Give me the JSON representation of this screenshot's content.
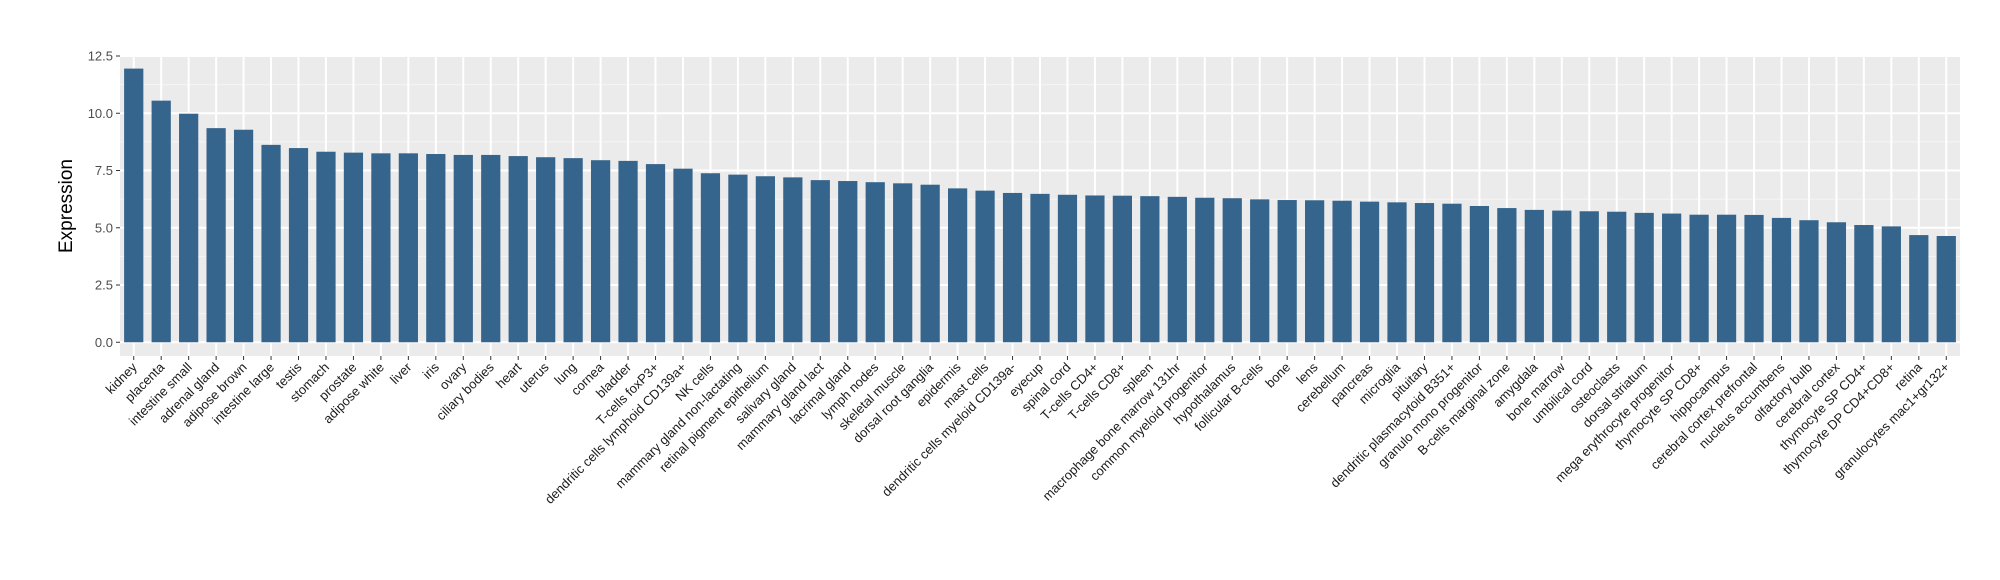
{
  "chart_data": {
    "type": "bar",
    "title": "",
    "xlabel": "",
    "ylabel": "Expression",
    "ylim": [
      -0.6,
      12.5
    ],
    "yticks": [
      "0.0",
      "2.5",
      "5.0",
      "7.5",
      "10.0",
      "12.5"
    ],
    "grid": true,
    "legend": "none",
    "colors": {
      "bar": "#35658c",
      "panel": "#ebebeb",
      "grid_major": "#ffffff",
      "grid_minor": "#f5f5f5"
    },
    "categories": [
      "kidney",
      "placenta",
      "intestine small",
      "adrenal gland",
      "adipose brown",
      "intestine large",
      "testis",
      "stomach",
      "prostate",
      "adipose white",
      "liver",
      "iris",
      "ovary",
      "ciliary bodies",
      "heart",
      "uterus",
      "lung",
      "cornea",
      "bladder",
      "T-cells foxP3+",
      "dendritic cells lymphoid CD139a+",
      "NK cells",
      "mammary gland non-lactating",
      "retinal pigment epithelium",
      "salivary gland",
      "mammary gland  lact",
      "lacrimal gland",
      "lymph nodes",
      "skeletal muscle",
      "dorsal root ganglia",
      "epidermis",
      "mast cells",
      "dendritic cells myeloid CD139a-",
      "eyecup",
      "spinal cord",
      "T-cells CD4+",
      "T-cells CD8+",
      "spleen",
      "macrophage bone marrow 131hr",
      "common myeloid progenitor",
      "hypothalamus",
      "follicular B-cells",
      "bone",
      "lens",
      "cerebellum",
      "pancreas",
      "microglia",
      "pituitary",
      "dendritic plasmacytoid B351+",
      "granulo mono progenitor",
      "B-cells marginal zone",
      "amygdala",
      "bone marrow",
      "umbilical cord",
      "osteoclasts",
      "dorsal striatum",
      "mega erythrocyte progenitor",
      "thymocyte SP CD8+",
      "hippocampus",
      "cerebral cortex prefrontal",
      "nucleus accumbens",
      "olfactory bulb",
      "cerebral cortex",
      "thymocyte SP CD4+",
      "thymocyte DP CD4+CD8+",
      "retina",
      "granulocytes mac1+gr132+"
    ],
    "values": [
      11.95,
      10.55,
      9.98,
      9.35,
      9.28,
      8.62,
      8.48,
      8.32,
      8.28,
      8.25,
      8.25,
      8.22,
      8.18,
      8.18,
      8.13,
      8.08,
      8.04,
      7.95,
      7.92,
      7.78,
      7.58,
      7.38,
      7.32,
      7.25,
      7.2,
      7.08,
      7.04,
      6.99,
      6.94,
      6.88,
      6.72,
      6.62,
      6.52,
      6.48,
      6.44,
      6.41,
      6.4,
      6.38,
      6.35,
      6.31,
      6.29,
      6.24,
      6.21,
      6.2,
      6.18,
      6.14,
      6.11,
      6.08,
      6.05,
      5.95,
      5.86,
      5.78,
      5.75,
      5.72,
      5.7,
      5.65,
      5.62,
      5.57,
      5.57,
      5.56,
      5.43,
      5.33,
      5.24,
      5.12,
      5.06,
      4.68,
      4.64
    ]
  }
}
